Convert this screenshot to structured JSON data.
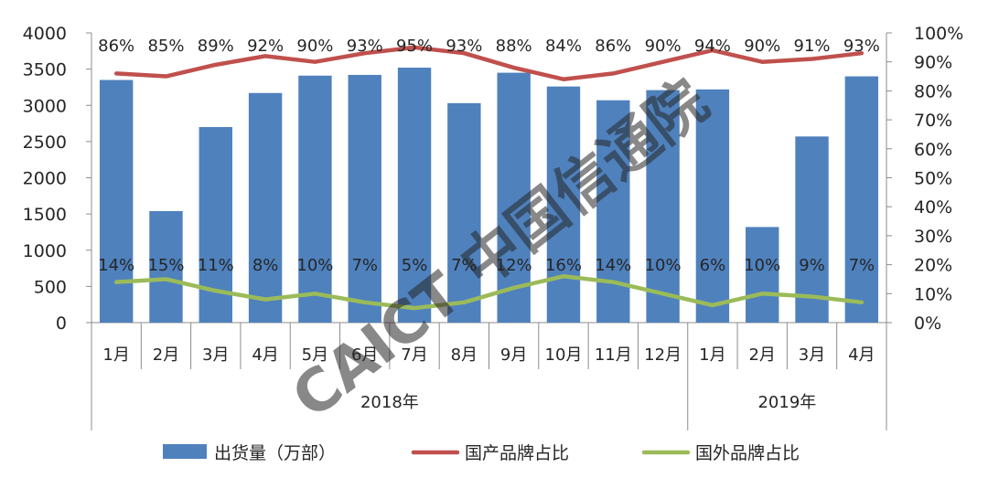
{
  "chart_data": {
    "type": "bar",
    "categories": [
      "1月",
      "2月",
      "3月",
      "4月",
      "5月",
      "6月",
      "7月",
      "8月",
      "9月",
      "10月",
      "11月",
      "12月",
      "1月",
      "2月",
      "3月",
      "4月"
    ],
    "groups": [
      {
        "label": "2018年",
        "count": 12
      },
      {
        "label": "2019年",
        "count": 4
      }
    ],
    "series": [
      {
        "name": "出货量（万部）",
        "kind": "bar",
        "axis": "left",
        "color": "#4f81bd",
        "values": [
          3350,
          1540,
          2700,
          3170,
          3410,
          3420,
          3520,
          3030,
          3450,
          3260,
          3070,
          3210,
          3220,
          1320,
          2570,
          3400
        ]
      },
      {
        "name": "国产品牌占比",
        "kind": "line",
        "axis": "right",
        "color": "#c0504d",
        "values": [
          86,
          85,
          89,
          92,
          90,
          93,
          95,
          93,
          88,
          84,
          86,
          90,
          94,
          90,
          91,
          93
        ],
        "labels": [
          "86%",
          "85%",
          "89%",
          "92%",
          "90%",
          "93%",
          "95%",
          "93%",
          "88%",
          "84%",
          "86%",
          "90%",
          "94%",
          "90%",
          "91%",
          "93%"
        ]
      },
      {
        "name": "国外品牌占比",
        "kind": "line",
        "axis": "right",
        "color": "#9bbb59",
        "values": [
          14,
          15,
          11,
          8,
          10,
          7,
          5,
          7,
          12,
          16,
          14,
          10,
          6,
          10,
          9,
          7
        ],
        "labels": [
          "14%",
          "15%",
          "11%",
          "8%",
          "10%",
          "7%",
          "5%",
          "7%",
          "12%",
          "16%",
          "14%",
          "10%",
          "6%",
          "10%",
          "9%",
          "7%"
        ]
      }
    ],
    "left_axis": {
      "ylim": [
        0,
        4000
      ],
      "ticks": [
        "0",
        "500",
        "1000",
        "1500",
        "2000",
        "2500",
        "3000",
        "3500",
        "4000"
      ]
    },
    "right_axis": {
      "ylim": [
        0,
        100
      ],
      "ticks": [
        "0%",
        "10%",
        "20%",
        "30%",
        "40%",
        "50%",
        "60%",
        "70%",
        "80%",
        "90%",
        "100%"
      ]
    },
    "grid": false,
    "legend_position": "bottom",
    "watermark": "CAICT 中国信通院"
  }
}
